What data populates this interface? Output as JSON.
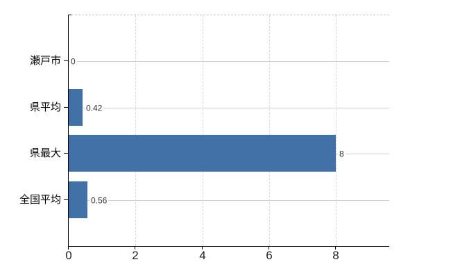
{
  "chart_data": {
    "type": "bar",
    "orientation": "horizontal",
    "title": "",
    "categories": [
      "瀬戸市",
      "県平均",
      "県最大",
      "全国平均"
    ],
    "values": [
      0,
      0.42,
      8,
      0.56
    ],
    "value_labels": [
      "0",
      "0.42",
      "8",
      "0.56"
    ],
    "x_ticks": [
      0,
      2,
      4,
      6,
      8
    ],
    "x_tick_labels": [
      "0",
      "2",
      "4",
      "6",
      "8"
    ],
    "xlim": [
      0,
      9.6
    ],
    "grid": true,
    "legend": false,
    "colors": {
      "bar": "#4171a6",
      "axis": "#000000",
      "grid_horizontal": "#ccd5cc",
      "grid_vertical": "#d6d6d6",
      "top_border": "#c9c9c9",
      "value_label": "#333333",
      "category_label": "#000000"
    }
  }
}
